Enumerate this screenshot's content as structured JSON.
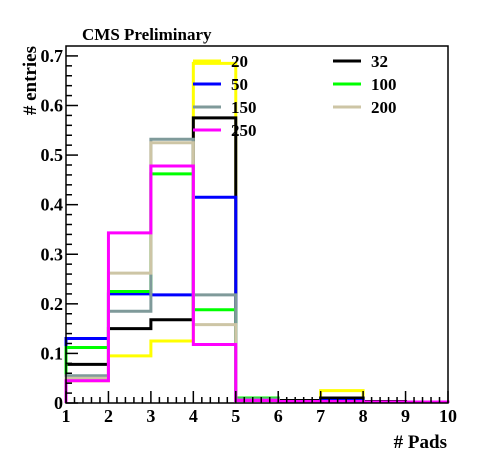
{
  "chart_data": {
    "type": "histogram",
    "title": "CMS Preliminary",
    "xlabel": "# Pads",
    "ylabel": "# entries",
    "xlim": [
      1,
      10
    ],
    "ylim": [
      0,
      0.72
    ],
    "x_ticks": [
      "1",
      "2",
      "3",
      "4",
      "5",
      "6",
      "7",
      "8",
      "9",
      "10"
    ],
    "y_ticks": [
      "0",
      "0.1",
      "0.2",
      "0.3",
      "0.4",
      "0.5",
      "0.6",
      "0.7"
    ],
    "bin_edges": [
      1,
      2,
      3,
      4,
      5,
      6,
      7,
      8,
      9,
      10
    ],
    "grid": false,
    "legend_position": "top",
    "series": [
      {
        "name": "20",
        "color": "#ffff00",
        "values": [
          0.045,
          0.095,
          0.125,
          0.685,
          0.005,
          0.003,
          0.025,
          0.003,
          0.002
        ]
      },
      {
        "name": "32",
        "color": "#000000",
        "values": [
          0.078,
          0.15,
          0.168,
          0.575,
          0.005,
          0.005,
          0.01,
          0.003,
          0.002
        ]
      },
      {
        "name": "50",
        "color": "#0000ff",
        "values": [
          0.13,
          0.22,
          0.218,
          0.415,
          0.005,
          0.003,
          0.005,
          0.002,
          0.002
        ]
      },
      {
        "name": "100",
        "color": "#00ff00",
        "values": [
          0.112,
          0.225,
          0.462,
          0.188,
          0.01,
          0.003,
          0.003,
          0.002,
          0.002
        ]
      },
      {
        "name": "150",
        "color": "#7f9a9a",
        "values": [
          0.055,
          0.185,
          0.532,
          0.218,
          0.008,
          0.003,
          0.003,
          0.002,
          0.002
        ]
      },
      {
        "name": "200",
        "color": "#cdc5a5",
        "values": [
          0.05,
          0.262,
          0.525,
          0.158,
          0.005,
          0.003,
          0.003,
          0.002,
          0.002
        ]
      },
      {
        "name": "250",
        "color": "#ff00ff",
        "values": [
          0.045,
          0.343,
          0.478,
          0.118,
          0.005,
          0.003,
          0.003,
          0.002,
          0.002
        ]
      }
    ]
  }
}
